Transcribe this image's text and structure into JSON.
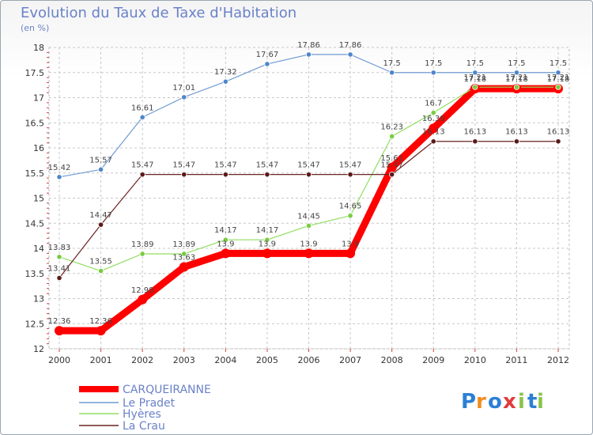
{
  "chart_data": {
    "type": "line",
    "title": "Evolution du Taux de Taxe d'Habitation",
    "ylabel": "(en %)",
    "xlabel": "",
    "ylim": [
      12,
      18
    ],
    "yticks": [
      "12",
      "12.5",
      "13",
      "13.5",
      "14",
      "14.5",
      "15",
      "15.5",
      "16",
      "16.5",
      "17",
      "17.5",
      "18"
    ],
    "x": [
      "2000",
      "2001",
      "2002",
      "2003",
      "2004",
      "2005",
      "2006",
      "2007",
      "2008",
      "2009",
      "2010",
      "2011",
      "2012"
    ],
    "series": [
      {
        "name": "CARQUEIRANNE",
        "color": "#ff0000",
        "values": [
          12.36,
          12.36,
          12.98,
          13.63,
          13.9,
          13.9,
          13.9,
          13.9,
          15.61,
          16.39,
          17.18,
          17.18,
          17.18
        ],
        "labels": [
          "12.36",
          "12.36",
          "12.98",
          "13.63",
          "13.9",
          "13.9",
          "13.9",
          "13.9",
          "15.61",
          "16.39",
          "17.18",
          "17.18",
          "17.18"
        ]
      },
      {
        "name": "Le Pradet",
        "color": "#6f9bd1",
        "values": [
          15.42,
          15.57,
          16.61,
          17.01,
          17.32,
          17.67,
          17.86,
          17.86,
          17.5,
          17.5,
          17.5,
          17.5,
          17.5
        ],
        "labels": [
          "15.42",
          "15.57",
          "16.61",
          "17.01",
          "17.32",
          "17.67",
          "17.86",
          "17.86",
          "17.5",
          "17.5",
          "17.5",
          "17.5",
          "17.5"
        ]
      },
      {
        "name": "Hyères",
        "color": "#90dd60",
        "values": [
          13.83,
          13.55,
          13.89,
          13.89,
          14.17,
          14.17,
          14.45,
          14.65,
          16.23,
          16.7,
          17.21,
          17.21,
          17.21
        ],
        "labels": [
          "13.83",
          "13.55",
          "13.89",
          "13.89",
          "14.17",
          "14.17",
          "14.45",
          "14.65",
          "16.23",
          "16.7",
          "17.21",
          "17.21",
          "17.21"
        ]
      },
      {
        "name": "La Crau",
        "color": "#6b2424",
        "values": [
          13.41,
          14.47,
          15.47,
          15.47,
          15.47,
          15.47,
          15.47,
          15.47,
          15.47,
          16.13,
          16.13,
          16.13,
          16.13
        ],
        "labels": [
          "13.41",
          "14.47",
          "15.47",
          "15.47",
          "15.47",
          "15.47",
          "15.47",
          "15.47",
          "15.47",
          "16.13",
          "16.13",
          "16.13",
          "16.13"
        ]
      }
    ],
    "legend": "bottom-left",
    "grid": true
  },
  "brand": {
    "text": "Proxiti",
    "letters": [
      "P",
      "r",
      "o",
      "x",
      "i",
      "t",
      "i"
    ],
    "colors": [
      "#2b7fd6",
      "#f28c1e",
      "#2b7fd6",
      "#e23b3b",
      "#8bc34a",
      "#2b7fd6",
      "#8bc34a"
    ]
  }
}
